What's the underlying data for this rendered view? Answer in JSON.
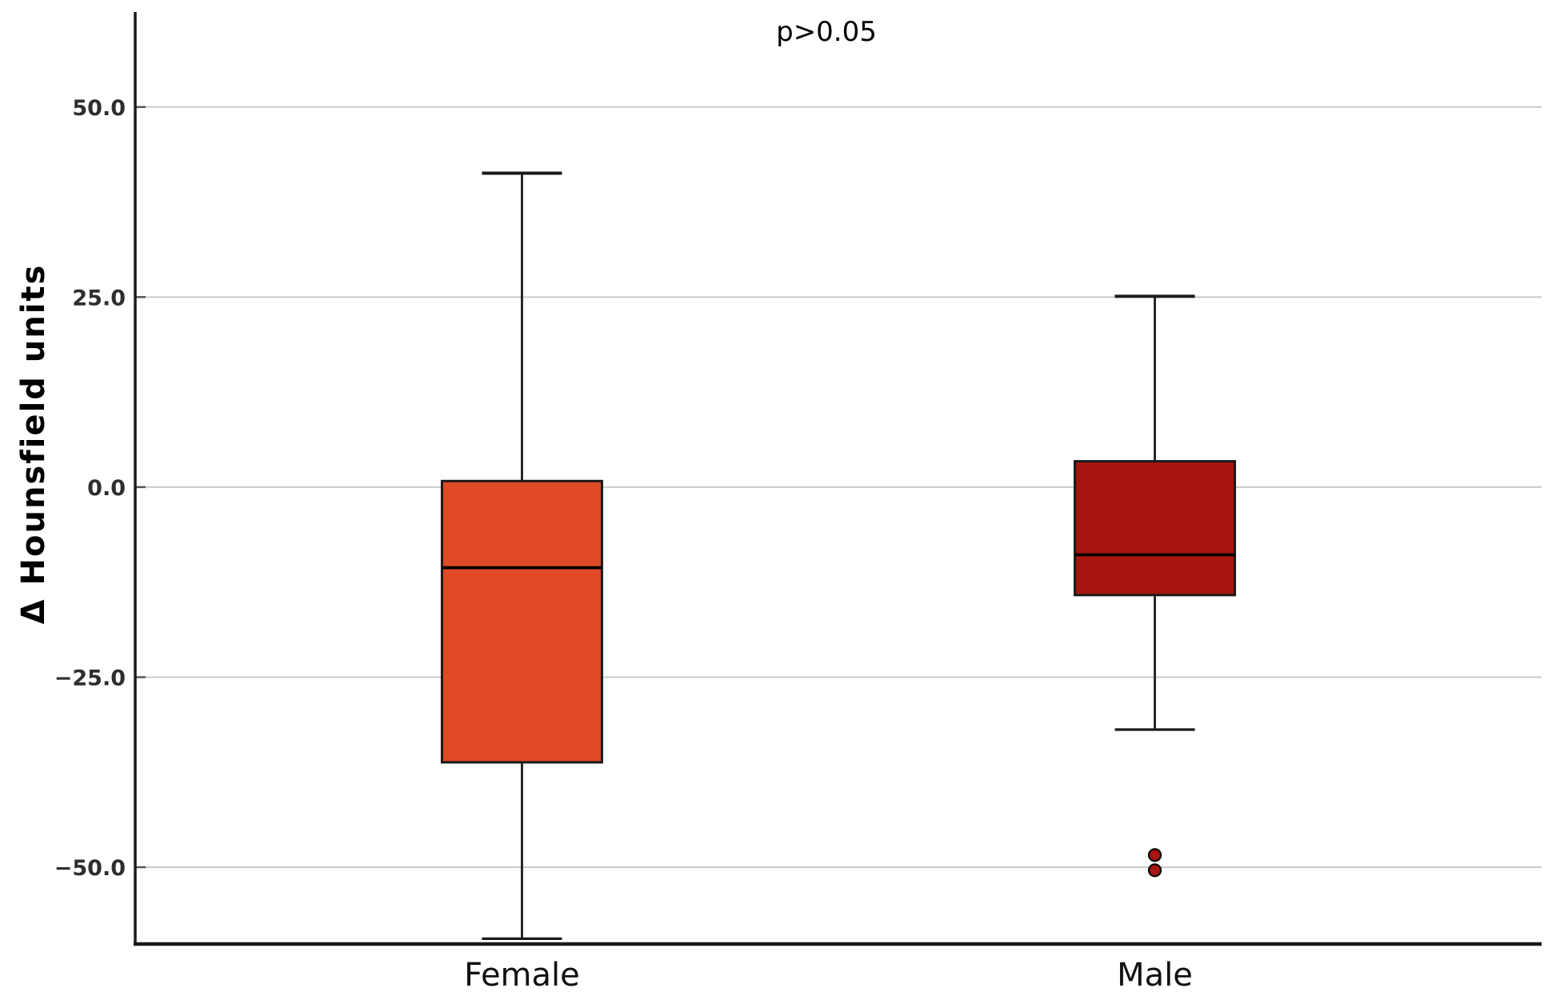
{
  "chart_data": {
    "type": "box",
    "title": "",
    "annotation": "p>0.05",
    "xlabel": "",
    "ylabel": "Δ Hounsfield units",
    "categories": [
      "Female",
      "Male"
    ],
    "ylim": [
      -60.1,
      62.5
    ],
    "grid": "horizontal",
    "legend": "none",
    "y_ticks": [
      {
        "value": 50,
        "label": "50.0"
      },
      {
        "value": 25,
        "label": "25.0"
      },
      {
        "value": 0,
        "label": "0.0"
      },
      {
        "value": -25,
        "label": "−25.0"
      },
      {
        "value": -50,
        "label": "−50.0"
      }
    ],
    "series": [
      {
        "name": "Female",
        "whisker_low": -59.4,
        "q1": -36.2,
        "median": -10.6,
        "q3": 0.8,
        "whisker_high": 41.3,
        "outliers": [],
        "box_color": "#E04A26"
      },
      {
        "name": "Male",
        "whisker_low": -31.9,
        "q1": -14.2,
        "median": -8.9,
        "q3": 3.4,
        "whisker_high": 25.1,
        "outliers": [
          -48.4,
          -50.4
        ],
        "box_color": "#A8150F"
      }
    ],
    "colors": {
      "grid": "#c9c9c9",
      "axis": "#1a1a1a",
      "box_stroke": "#1a1a1a",
      "median": "#000000",
      "tick_text": "#2e2e2e",
      "category_text": "#111111",
      "outlier_stroke": "#000000"
    }
  }
}
